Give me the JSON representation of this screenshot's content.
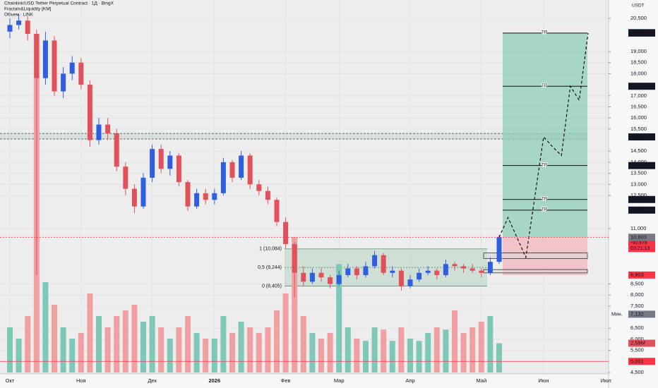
{
  "chart_data": {
    "type": "candlestick",
    "title": "Chainlink/USD Tether Perpetual Contract · 1Д · BingX",
    "indicators": [
      "Fractals&Liquidity [KM]",
      "Объем · LINK"
    ],
    "currency": "USDT",
    "up_color": "#2f5fe0",
    "down_color": "#e0515b",
    "volume_up_color": "#7fc8b8",
    "volume_down_color": "#f0a0a0",
    "categories": [
      "Окт",
      null,
      null,
      null,
      null,
      null,
      null,
      null,
      "Ноя",
      null,
      null,
      null,
      null,
      null,
      null,
      null,
      "Дек",
      null,
      null,
      null,
      null,
      null,
      null,
      "2026",
      null,
      null,
      null,
      null,
      null,
      null,
      null,
      "Фев",
      null,
      null,
      null,
      null,
      null,
      "Мар",
      null,
      null,
      null,
      null,
      null,
      null,
      null,
      "Апр",
      null,
      null,
      null,
      null,
      null,
      null,
      null,
      "Май",
      null,
      null,
      null,
      null,
      null,
      null,
      "Июн",
      null,
      null,
      null,
      null,
      null,
      null,
      "Июл",
      null,
      null,
      null,
      null,
      null
    ],
    "open": [
      19900,
      20200,
      20400,
      19800,
      17800,
      19500,
      17200,
      18000,
      18500,
      17500,
      15000,
      15700,
      15300,
      13800,
      12800,
      12000,
      13300,
      14600,
      13700,
      14300,
      13100,
      12000,
      12600,
      12300,
      12600,
      14000,
      13300,
      14300,
      13000,
      12700,
      12300,
      11300,
      10300,
      9000,
      8600,
      9000,
      8800,
      8500,
      8900,
      9200,
      8900,
      9300,
      9800,
      9000,
      9100,
      8400,
      8700,
      9000,
      9100,
      8900,
      9400,
      9300,
      9200,
      9100,
      9000,
      9500,
      null,
      null,
      null,
      null,
      null,
      null,
      null,
      null,
      null,
      null,
      null,
      null,
      null,
      null,
      null,
      null,
      null
    ],
    "high": [
      20500,
      20700,
      20600,
      20000,
      19900,
      19700,
      18300,
      18800,
      18700,
      17700,
      16000,
      16000,
      15500,
      14000,
      13000,
      13500,
      14800,
      14800,
      14500,
      14400,
      13200,
      12800,
      12800,
      12800,
      14200,
      14100,
      14500,
      14400,
      13200,
      12900,
      12400,
      11500,
      10400,
      9300,
      9200,
      9200,
      8900,
      9100,
      9400,
      9300,
      9500,
      10000,
      9900,
      9300,
      9200,
      8900,
      9200,
      9300,
      9200,
      9600,
      9500,
      9400,
      9400,
      9200,
      9700,
      10700,
      null,
      null,
      null,
      null,
      null,
      null,
      null,
      null,
      null,
      null,
      null,
      null,
      null,
      null,
      null,
      null,
      null
    ],
    "low": [
      19600,
      20000,
      19500,
      8900,
      17500,
      17000,
      16900,
      17700,
      17300,
      14700,
      14800,
      15000,
      13600,
      12500,
      11700,
      11900,
      13100,
      13500,
      13400,
      12900,
      11800,
      11900,
      12100,
      12100,
      12500,
      13100,
      13200,
      12800,
      12500,
      12100,
      11100,
      10100,
      7900,
      8400,
      8500,
      8600,
      8300,
      8400,
      8800,
      8700,
      8800,
      9200,
      8900,
      8800,
      8200,
      8300,
      8600,
      8900,
      8700,
      8800,
      9100,
      9000,
      9000,
      8800,
      8900,
      9400,
      null,
      null,
      null,
      null,
      null,
      null,
      null,
      null,
      null,
      null,
      null,
      null,
      null,
      null,
      null,
      null,
      null
    ],
    "close": [
      20200,
      20400,
      19800,
      17800,
      19500,
      17200,
      18000,
      18500,
      17500,
      15000,
      15700,
      15300,
      13800,
      12800,
      12000,
      13300,
      14600,
      13700,
      14300,
      13100,
      12000,
      12600,
      12300,
      12600,
      14000,
      13300,
      14300,
      13000,
      12700,
      12300,
      11300,
      10300,
      9000,
      8600,
      9000,
      8800,
      8500,
      8900,
      9200,
      8900,
      9300,
      9800,
      9000,
      9100,
      8400,
      8700,
      9000,
      9100,
      8900,
      9400,
      9300,
      9200,
      9100,
      9000,
      9500,
      10609,
      null,
      null,
      null,
      null,
      null,
      null,
      null,
      null,
      null,
      null,
      null,
      null,
      null,
      null,
      null,
      null,
      null
    ],
    "volume": [
      4,
      3,
      5,
      30,
      8,
      6,
      4,
      3,
      3.5,
      7,
      5,
      4,
      5,
      5.5,
      6,
      4.5,
      5,
      4,
      3,
      4,
      5,
      3.5,
      3,
      3,
      5,
      3.5,
      4.5,
      4,
      3.5,
      4,
      5.5,
      7,
      12,
      5,
      3.5,
      3,
      3.5,
      9.6,
      4,
      3,
      2.8,
      4,
      3.8,
      2.8,
      4,
      3,
      2.8,
      3.5,
      4,
      3.8,
      5.5,
      3.5,
      4,
      4.5,
      5,
      2.59,
      null,
      null,
      null,
      null,
      null,
      null,
      null,
      null,
      null,
      null,
      null,
      null,
      null,
      null,
      null,
      null,
      null
    ],
    "volume_last_label": "2,59M",
    "vlim": [
      0,
      33
    ],
    "ylim": [
      4500,
      20500
    ],
    "yticks": [
      {
        "value": 4500,
        "label": "4,500"
      },
      {
        "value": 5500,
        "label": "5,500"
      },
      {
        "value": 6000,
        "label": "6,000"
      },
      {
        "value": 6500,
        "label": "6,500"
      },
      {
        "value": 7500,
        "label": "7,500"
      },
      {
        "value": 8000,
        "label": "8,000"
      },
      {
        "value": 8500,
        "label": "8,500"
      },
      {
        "value": 11000,
        "label": "11,000"
      },
      {
        "value": 12500,
        "label": "12,500"
      },
      {
        "value": 13000,
        "label": "13,000"
      },
      {
        "value": 13500,
        "label": "13,500"
      },
      {
        "value": 14000,
        "label": "14,000"
      },
      {
        "value": 14500,
        "label": "14,500"
      },
      {
        "value": 15500,
        "label": "15,500"
      },
      {
        "value": 16000,
        "label": "16,000"
      },
      {
        "value": 16500,
        "label": "16,500"
      },
      {
        "value": 17000,
        "label": "17,000"
      },
      {
        "value": 18000,
        "label": "18,000"
      },
      {
        "value": 18500,
        "label": "18,500"
      },
      {
        "value": 19000,
        "label": "19,000"
      },
      {
        "value": 20500,
        "label": "20,500"
      }
    ],
    "grid": true,
    "tp_levels": [
      {
        "value": 19834,
        "label": "TP"
      },
      {
        "value": 17432,
        "label": "TP"
      },
      {
        "value": 13849,
        "label": "TP"
      },
      {
        "value": 12316,
        "label": "TP"
      },
      {
        "value": 11836,
        "label": "TP"
      }
    ],
    "fib_levels": [
      {
        "value": 10084,
        "label": "1 (10,084)"
      },
      {
        "value": 9244,
        "label": "0,5 (9,244)"
      },
      {
        "value": 8405,
        "label": "0 (8,405)"
      }
    ],
    "liquidity_zone": [
      15050,
      15300
    ],
    "order_blocks": [
      [
        9650,
        9900
      ],
      [
        9000,
        9150
      ]
    ],
    "projection": [
      null,
      null,
      null,
      null,
      null,
      null,
      null,
      null,
      null,
      null,
      null,
      null,
      null,
      null,
      null,
      null,
      null,
      null,
      null,
      null,
      null,
      null,
      null,
      null,
      null,
      null,
      null,
      null,
      null,
      null,
      null,
      null,
      null,
      null,
      null,
      null,
      null,
      null,
      null,
      null,
      null,
      null,
      null,
      null,
      null,
      null,
      null,
      null,
      null,
      null,
      null,
      null,
      null,
      null,
      null,
      10609,
      11500,
      10600,
      9700,
      12400,
      15143,
      14700,
      14300,
      17432,
      16800,
      19834,
      null,
      null,
      null,
      null,
      null,
      null,
      null
    ],
    "price_labels": [
      {
        "value": 19863,
        "label": "19,863",
        "color": "#089981"
      },
      {
        "value": 19834,
        "label": "19,834",
        "color": "#131722"
      },
      {
        "value": 17432,
        "label": "17,432",
        "color": "#131722"
      },
      {
        "value": 15143,
        "label": "15,143",
        "color": "#131722"
      },
      {
        "value": 13849,
        "label": "13,849",
        "color": "#131722"
      },
      {
        "value": 12316,
        "label": "12,316",
        "color": "#131722"
      },
      {
        "value": 11836,
        "label": "11,836",
        "color": "#131722"
      },
      {
        "value": 10609,
        "label": "10,609",
        "color": "#f23645",
        "lines": [
          "-50,978",
          "03:21:13"
        ]
      },
      {
        "value": 10603,
        "label": "10,603",
        "color": "#787b86"
      },
      {
        "value": 8903,
        "label": "8,903",
        "color": "#f23645"
      },
      {
        "value": 7132,
        "label": "7,132",
        "color": "#787b86",
        "caption": "Мин."
      },
      {
        "value": 5001,
        "label": "5,001",
        "color": "#f23645"
      }
    ]
  }
}
